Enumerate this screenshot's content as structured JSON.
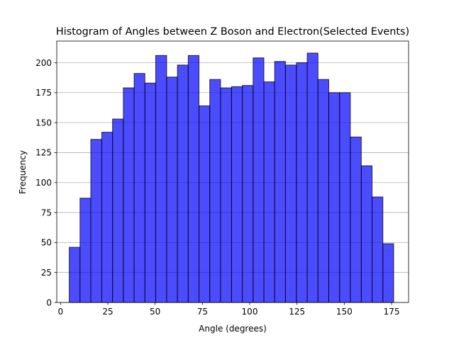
{
  "chart_data": {
    "type": "bar",
    "title": "Histogram of Angles between Z Boson and Electron(Selected Events)",
    "xlabel": "Angle (degrees)",
    "ylabel": "Frequency",
    "xlim": [
      -2,
      184
    ],
    "ylim": [
      0,
      218
    ],
    "x_ticks": [
      0,
      25,
      50,
      75,
      100,
      125,
      150,
      175
    ],
    "y_ticks": [
      0,
      25,
      50,
      75,
      100,
      125,
      150,
      175,
      200
    ],
    "grid": "y",
    "legend": "none",
    "bar_color": "#0000ff",
    "bar_opacity": 0.7,
    "edge_color": "#000000",
    "grid_color": "#b0b0b0",
    "bin_edges": [
      4.6,
      10.3,
      16.0,
      21.8,
      27.5,
      33.2,
      38.9,
      44.6,
      50.3,
      56.1,
      61.8,
      67.5,
      73.2,
      78.9,
      84.6,
      90.4,
      96.1,
      101.8,
      107.5,
      113.2,
      118.9,
      124.7,
      130.4,
      136.1,
      141.8,
      147.5,
      153.2,
      159.0,
      164.7,
      170.4,
      176.1
    ],
    "values": [
      46,
      87,
      136,
      142,
      153,
      179,
      191,
      183,
      206,
      188,
      198,
      206,
      164,
      186,
      179,
      180,
      181,
      204,
      184,
      201,
      198,
      200,
      208,
      186,
      175,
      175,
      138,
      114,
      88,
      49
    ]
  }
}
